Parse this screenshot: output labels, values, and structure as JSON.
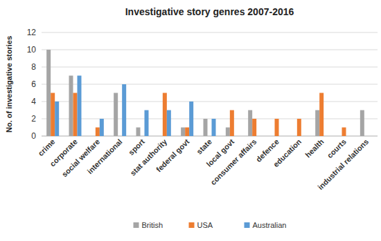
{
  "chart_data": {
    "type": "bar",
    "title": "Investigative story genres 2007-2016",
    "y_label": "No. of investigative stories",
    "categories": [
      "crime",
      "corporate",
      "social welfare",
      "international",
      "sport",
      "stat authority",
      "federal govt",
      "state",
      "local govt",
      "consumer affairs",
      "defence",
      "education",
      "health",
      "courts",
      "industrial relations"
    ],
    "series": [
      {
        "name": "British",
        "color": "#a5a5a5",
        "values": [
          10,
          7,
          0,
          5,
          1,
          0,
          1,
          2,
          1,
          3,
          0,
          0,
          3,
          0,
          3
        ]
      },
      {
        "name": "USA",
        "color": "#ed7d31",
        "values": [
          5,
          5,
          1,
          0,
          0,
          5,
          1,
          0,
          3,
          2,
          2,
          2,
          5,
          1,
          0
        ]
      },
      {
        "name": "Australian",
        "color": "#5b9bd5",
        "values": [
          4,
          7,
          2,
          6,
          3,
          3,
          4,
          2,
          0,
          0,
          0,
          0,
          0,
          0,
          0
        ]
      }
    ],
    "ylim": [
      0,
      12
    ],
    "yticks": [
      0,
      2,
      4,
      6,
      8,
      10,
      12
    ],
    "grid": true,
    "legend": "bottom"
  }
}
